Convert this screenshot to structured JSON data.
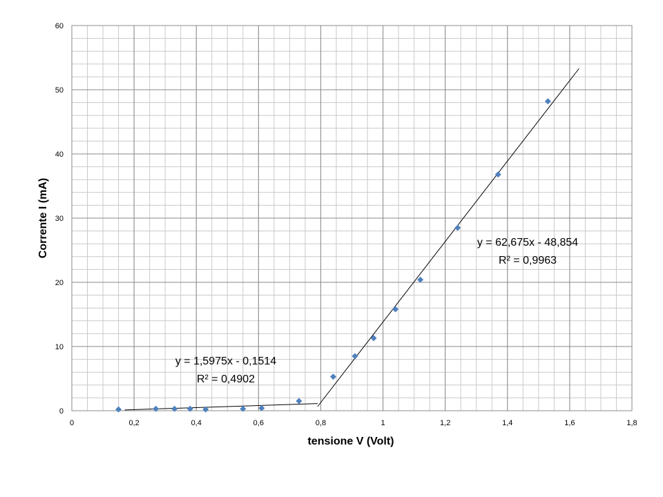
{
  "chart_data": {
    "type": "scatter",
    "title": "",
    "xlabel": "tensione V (Volt)",
    "ylabel": "Corrente I (mA)",
    "xlim": [
      0,
      1.8
    ],
    "ylim": [
      0,
      60
    ],
    "x_major_ticks": [
      "0",
      "0,2",
      "0,4",
      "0,6",
      "0,8",
      "1",
      "1,2",
      "1,4",
      "1,6",
      "1,8"
    ],
    "y_major_ticks": [
      "0",
      "10",
      "20",
      "30",
      "40",
      "50",
      "60"
    ],
    "x_major_step": 0.2,
    "x_minor_step": 0.05,
    "y_major_step": 10,
    "y_minor_step": 2,
    "grid": true,
    "legend": "none",
    "marker_color": "#4f81bd",
    "series": [
      {
        "points": [
          {
            "x": 0.15,
            "y": 0.2
          },
          {
            "x": 0.27,
            "y": 0.3
          },
          {
            "x": 0.33,
            "y": 0.3
          },
          {
            "x": 0.38,
            "y": 0.3
          },
          {
            "x": 0.43,
            "y": 0.2
          },
          {
            "x": 0.55,
            "y": 0.3
          },
          {
            "x": 0.61,
            "y": 0.4
          },
          {
            "x": 0.73,
            "y": 1.5
          },
          {
            "x": 0.84,
            "y": 5.3
          },
          {
            "x": 0.91,
            "y": 8.5
          },
          {
            "x": 0.97,
            "y": 11.3
          },
          {
            "x": 1.04,
            "y": 15.8
          },
          {
            "x": 1.12,
            "y": 20.4
          },
          {
            "x": 1.24,
            "y": 28.5
          },
          {
            "x": 1.37,
            "y": 36.8
          },
          {
            "x": 1.53,
            "y": 48.2
          }
        ]
      }
    ],
    "trendlines": [
      {
        "slope": 1.5975,
        "intercept": -0.1514,
        "x_range": [
          0.17,
          0.79
        ],
        "equation": "y = 1,5975x - 0,1514",
        "r2": "R² = 0,4902"
      },
      {
        "slope": 62.675,
        "intercept": -48.854,
        "x_range": [
          0.79,
          1.63
        ],
        "equation": "y = 62,675x - 48,854",
        "r2": "R² = 0,9963"
      }
    ]
  }
}
